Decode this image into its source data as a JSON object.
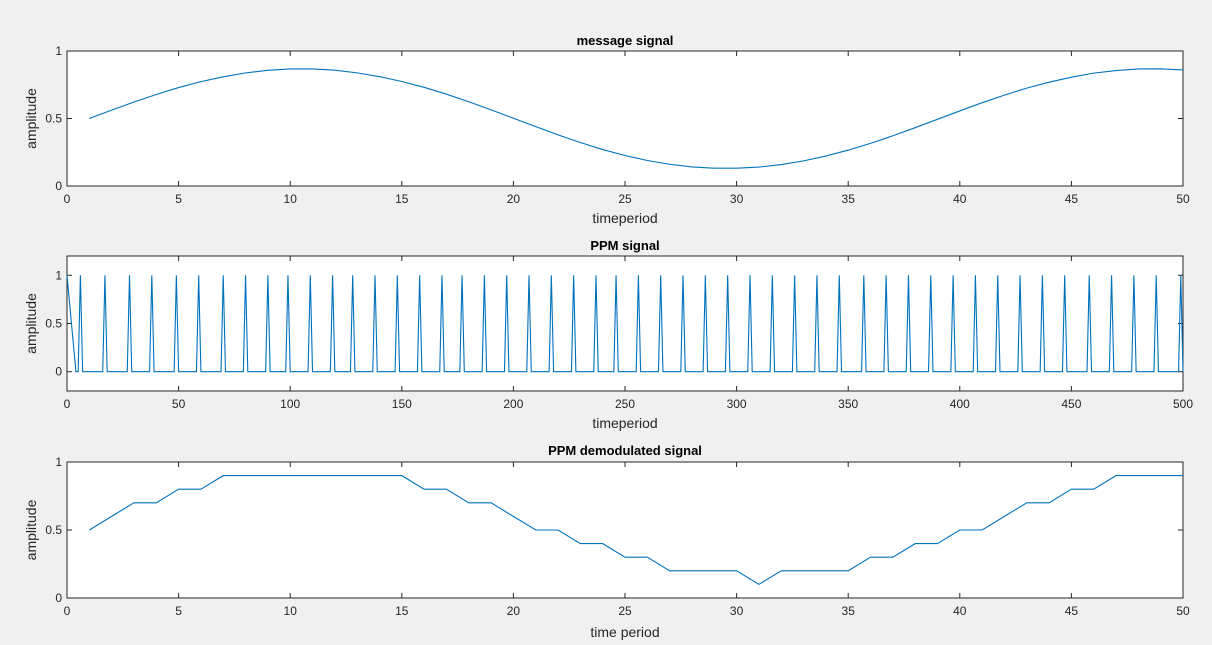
{
  "colors": {
    "figure_bg": "#f0f0f0",
    "axes_bg": "#ffffff",
    "axis": "#262626",
    "line": "#0072bd"
  },
  "chart_data": [
    {
      "type": "line",
      "title": "message signal",
      "xlabel": "timeperiod",
      "ylabel": "amplitude",
      "xlim": [
        0,
        50
      ],
      "ylim": [
        0,
        1
      ],
      "xticks": [
        0,
        5,
        10,
        15,
        20,
        25,
        30,
        35,
        40,
        45,
        50
      ],
      "yticks": [
        0,
        0.5,
        1
      ],
      "grid": false,
      "series": [
        {
          "x": [
            1,
            2,
            3,
            4,
            5,
            6,
            7,
            8,
            9,
            10,
            11,
            12,
            13,
            14,
            15,
            16,
            17,
            18,
            19,
            20,
            21,
            22,
            23,
            24,
            25,
            26,
            27,
            28,
            29,
            30,
            31,
            32,
            33,
            34,
            35,
            36,
            37,
            38,
            39,
            40,
            41,
            42,
            43,
            44,
            45,
            46,
            47,
            48,
            49,
            50
          ],
          "values": [
            0.5,
            0.562,
            0.622,
            0.678,
            0.729,
            0.773,
            0.809,
            0.838,
            0.857,
            0.867,
            0.867,
            0.858,
            0.838,
            0.81,
            0.774,
            0.731,
            0.68,
            0.624,
            0.564,
            0.502,
            0.44,
            0.379,
            0.322,
            0.27,
            0.226,
            0.189,
            0.161,
            0.141,
            0.132,
            0.132,
            0.14,
            0.159,
            0.186,
            0.222,
            0.266,
            0.316,
            0.372,
            0.432,
            0.494,
            0.556,
            0.617,
            0.673,
            0.725,
            0.769,
            0.806,
            0.836,
            0.855,
            0.867,
            0.868,
            0.86
          ]
        }
      ]
    },
    {
      "type": "line",
      "title": "PPM signal",
      "xlabel": "timeperiod",
      "ylabel": "amplitude",
      "xlim": [
        0,
        500
      ],
      "ylim": [
        -0.2,
        1.2
      ],
      "xticks": [
        0,
        50,
        100,
        150,
        200,
        250,
        300,
        350,
        400,
        450,
        500
      ],
      "yticks": [
        0,
        0.5,
        1
      ],
      "grid": false,
      "pulse_period": 10,
      "pulse_positions": [
        6,
        17,
        28,
        38,
        49,
        59,
        70,
        80,
        90,
        99,
        109,
        119,
        128,
        138,
        148,
        158,
        168,
        177,
        187,
        197,
        207,
        217,
        227,
        237,
        246,
        256,
        266,
        276,
        286,
        296,
        306,
        316,
        326,
        336,
        346,
        357,
        367,
        377,
        387,
        397,
        407,
        417,
        427,
        437,
        447,
        458,
        468,
        478,
        488,
        499
      ],
      "low_value": 0,
      "high_value": 1
    },
    {
      "type": "line",
      "title": "PPM demodulated signal",
      "xlabel": "time period",
      "ylabel": "amplitude",
      "xlim": [
        0,
        50
      ],
      "ylim": [
        0,
        1
      ],
      "xticks": [
        0,
        5,
        10,
        15,
        20,
        25,
        30,
        35,
        40,
        45,
        50
      ],
      "yticks": [
        0,
        0.5,
        1
      ],
      "grid": false,
      "series": [
        {
          "x": [
            1,
            2,
            3,
            4,
            5,
            6,
            7,
            8,
            9,
            10,
            11,
            12,
            13,
            14,
            15,
            16,
            17,
            18,
            19,
            20,
            21,
            22,
            23,
            24,
            25,
            26,
            27,
            28,
            29,
            30,
            31,
            32,
            33,
            34,
            35,
            36,
            37,
            38,
            39,
            40,
            41,
            42,
            43,
            44,
            45,
            46,
            47,
            48,
            49,
            50
          ],
          "values": [
            0.5,
            0.6,
            0.7,
            0.7,
            0.8,
            0.8,
            0.9,
            0.9,
            0.9,
            0.9,
            0.9,
            0.9,
            0.9,
            0.9,
            0.9,
            0.8,
            0.8,
            0.7,
            0.7,
            0.6,
            0.5,
            0.5,
            0.4,
            0.4,
            0.3,
            0.3,
            0.2,
            0.2,
            0.2,
            0.2,
            0.1,
            0.2,
            0.2,
            0.2,
            0.2,
            0.3,
            0.3,
            0.4,
            0.4,
            0.5,
            0.5,
            0.6,
            0.7,
            0.7,
            0.8,
            0.8,
            0.9,
            0.9,
            0.9,
            0.9
          ]
        }
      ]
    }
  ]
}
